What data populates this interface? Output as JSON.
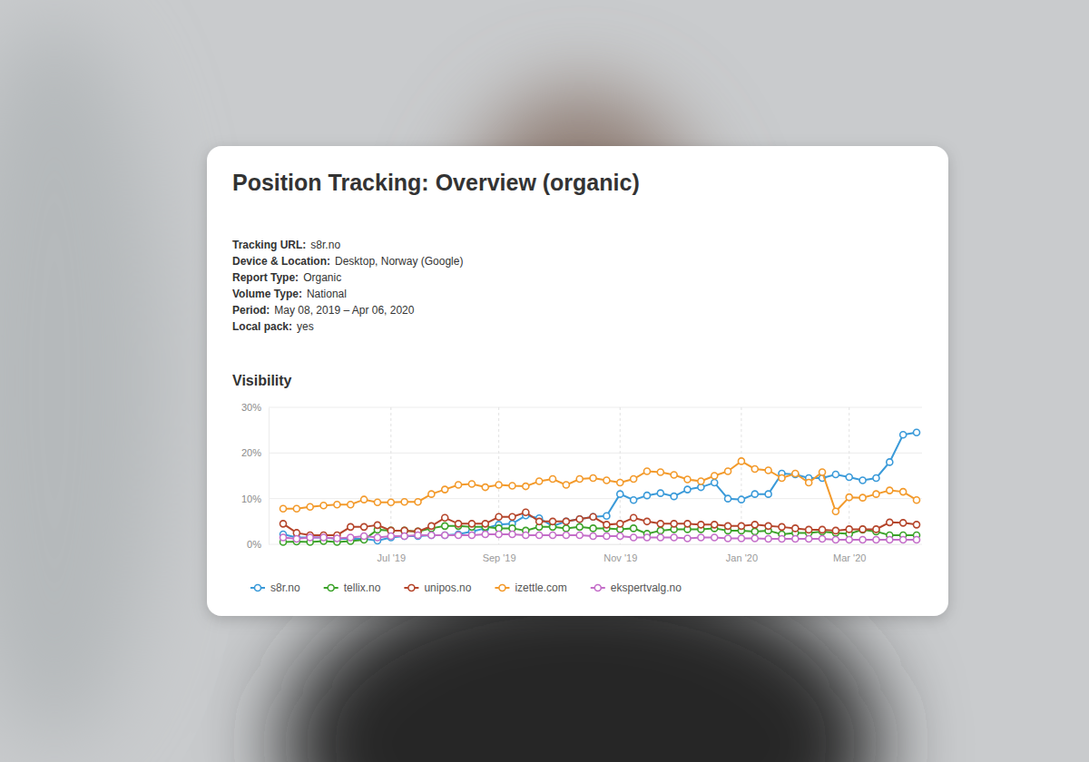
{
  "header": {
    "title": "Position Tracking: Overview (organic)",
    "meta": [
      {
        "label": "Tracking URL:",
        "value": "s8r.no"
      },
      {
        "label": "Device & Location:",
        "value": "Desktop, Norway (Google)"
      },
      {
        "label": "Report Type:",
        "value": "Organic"
      },
      {
        "label": "Volume Type:",
        "value": "National"
      },
      {
        "label": "Period:",
        "value": "May 08, 2019 – Apr 06, 2020"
      },
      {
        "label": "Local pack:",
        "value": "yes"
      }
    ]
  },
  "chart_data": {
    "type": "line",
    "title": "Visibility",
    "categories": [
      null,
      null,
      null,
      null,
      null,
      null,
      null,
      null,
      "Jul '19",
      null,
      null,
      null,
      null,
      null,
      null,
      null,
      "Sep '19",
      null,
      null,
      null,
      null,
      null,
      null,
      null,
      null,
      "Nov '19",
      null,
      null,
      null,
      null,
      null,
      null,
      null,
      null,
      "Jan '20",
      null,
      null,
      null,
      null,
      null,
      null,
      null,
      "Mar '20",
      null,
      null,
      null,
      null,
      null
    ],
    "series": [
      {
        "name": "s8r.no",
        "color": "#3a9ad9",
        "values": [
          2.2,
          1.5,
          1.5,
          1.5,
          1.2,
          1.2,
          1.2,
          0.8,
          1.5,
          1.8,
          1.8,
          2,
          2,
          2.2,
          2.8,
          3.5,
          4.3,
          4.5,
          6.3,
          5.7,
          4,
          5,
          5.5,
          6,
          6.2,
          11,
          9.7,
          10.7,
          11.2,
          10.5,
          12,
          12.5,
          13.5,
          10,
          9.8,
          11,
          11,
          15.5,
          15.3,
          14.5,
          14.5,
          15.3,
          14.7,
          14,
          14.5,
          18,
          24,
          24.5
        ]
      },
      {
        "name": "tellix.no",
        "color": "#3ca32a",
        "values": [
          0.5,
          0.6,
          0.5,
          0.7,
          0.5,
          0.7,
          1,
          3.2,
          3,
          3,
          2.8,
          3.5,
          4,
          4,
          3.8,
          3.8,
          3.5,
          3.5,
          3,
          3.8,
          3.8,
          3.5,
          3.8,
          3.5,
          3.5,
          3.3,
          3.5,
          2.3,
          3,
          3.3,
          3.3,
          3.3,
          3.5,
          3,
          3,
          2.8,
          3,
          2.2,
          2.5,
          2.5,
          2.8,
          2.5,
          2.3,
          3.2,
          2.8,
          2,
          2,
          2
        ]
      },
      {
        "name": "unipos.no",
        "color": "#b5452b",
        "values": [
          4.5,
          2.5,
          2,
          2,
          2,
          3.8,
          3.8,
          4.2,
          3,
          3,
          2.8,
          4,
          5.8,
          4.5,
          4.5,
          4.5,
          6,
          6,
          7,
          5,
          5,
          5,
          5.5,
          6,
          4.3,
          4.5,
          5.8,
          5,
          4.5,
          4.5,
          4.5,
          4.3,
          4.3,
          4,
          4,
          4.3,
          4,
          3.8,
          3.5,
          3.2,
          3.2,
          3,
          3.3,
          3.3,
          3.3,
          4.8,
          4.7,
          4.3
        ]
      },
      {
        "name": "izettle.com",
        "color": "#f39a2b",
        "values": [
          7.8,
          7.8,
          8.2,
          8.5,
          8.7,
          8.7,
          9.8,
          9.2,
          9.2,
          9.3,
          9.3,
          11,
          12,
          13,
          13.2,
          12.5,
          13,
          12.8,
          12.7,
          13.8,
          14.3,
          13,
          14.3,
          14.5,
          14,
          13.5,
          14.3,
          16,
          15.8,
          15.2,
          14.2,
          13.8,
          15,
          16,
          18.2,
          16.5,
          16.2,
          14.5,
          15.5,
          13.5,
          15.8,
          7.2,
          10.3,
          10.2,
          11,
          11.8,
          11.5,
          9.7
        ]
      },
      {
        "name": "ekspertvalg.no",
        "color": "#c46ec9",
        "values": [
          1.5,
          1.2,
          1.5,
          1.5,
          1.3,
          1.5,
          1.8,
          1.5,
          1.8,
          1.8,
          2,
          2,
          2,
          2,
          2,
          2.2,
          2.2,
          2.2,
          2,
          2,
          2,
          2,
          2,
          1.8,
          1.8,
          1.8,
          1.5,
          1.5,
          1.5,
          1.5,
          1.3,
          1.5,
          1.5,
          1.3,
          1.3,
          1.3,
          1.2,
          1.2,
          1.2,
          1.2,
          1.2,
          1,
          1,
          1,
          1,
          1,
          1,
          1
        ]
      }
    ],
    "ylim": [
      0,
      30
    ],
    "yticks": [
      {
        "value": 0,
        "label": "0%"
      },
      {
        "value": 10,
        "label": "10%"
      },
      {
        "value": 20,
        "label": "20%"
      },
      {
        "value": 30,
        "label": "30%"
      }
    ],
    "grid": true,
    "legend": "bottom",
    "marker": "circle"
  }
}
